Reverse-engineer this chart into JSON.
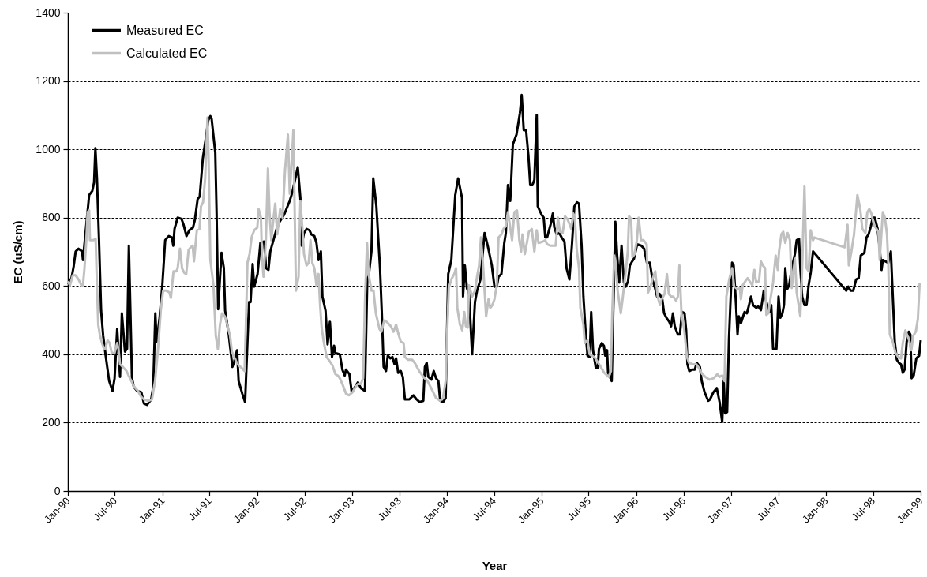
{
  "chart_data": {
    "type": "line",
    "xlabel": "Year",
    "ylabel": "EC (uS/cm)",
    "xlim": [
      "1990-01-01",
      "1999-01-01"
    ],
    "xticks": [
      {
        "value": "1990-01-01",
        "label": "Jan-90"
      },
      {
        "value": "1990-07-01",
        "label": "Jul-90"
      },
      {
        "value": "1991-01-01",
        "label": "Jan-91"
      },
      {
        "value": "1991-07-01",
        "label": "Jul-91"
      },
      {
        "value": "1992-01-01",
        "label": "Jan-92"
      },
      {
        "value": "1992-07-01",
        "label": "Jul-92"
      },
      {
        "value": "1993-01-01",
        "label": "Jan-93"
      },
      {
        "value": "1993-07-01",
        "label": "Jul-93"
      },
      {
        "value": "1994-01-01",
        "label": "Jan-94"
      },
      {
        "value": "1994-07-01",
        "label": "Jul-94"
      },
      {
        "value": "1995-01-01",
        "label": "Jan-95"
      },
      {
        "value": "1995-07-01",
        "label": "Jul-95"
      },
      {
        "value": "1996-01-01",
        "label": "Jan-96"
      },
      {
        "value": "1996-07-01",
        "label": "Jul-96"
      },
      {
        "value": "1997-01-01",
        "label": "Jan-97"
      },
      {
        "value": "1997-07-01",
        "label": "Jul-97"
      },
      {
        "value": "1998-01-01",
        "label": "Jan-98"
      },
      {
        "value": "1998-07-01",
        "label": "Jul-98"
      },
      {
        "value": "1999-01-01",
        "label": "Jan-99"
      }
    ],
    "ylim": [
      0,
      1400
    ],
    "yticks": [
      0,
      200,
      400,
      600,
      800,
      1000,
      1200,
      1400
    ],
    "grid": "y",
    "legend": "top left",
    "line_style": "solid",
    "series": [
      {
        "name": "Measured EC",
        "color": "#000000",
        "x": [
          "1990-01-01",
          "1990-01-15",
          "1990-01-23",
          "1990-01-31",
          "1990-02-11",
          "1990-02-25",
          "1990-02-28",
          "1990-03-24",
          "1990-04-05",
          "1990-04-12",
          "1990-04-17",
          "1990-04-23",
          "1990-05-01",
          "1990-05-09",
          "1990-05-17",
          "1990-05-28",
          "1990-06-09",
          "1990-06-22",
          "1990-06-30",
          "1990-07-10",
          "1990-07-21",
          "1990-07-28",
          "1990-08-09",
          "1990-08-17",
          "1990-08-24",
          "1990-09-05",
          "1990-09-12",
          "1990-09-25",
          "1990-10-11",
          "1990-10-21",
          "1990-11-02",
          "1990-11-18",
          "1990-11-26",
          "1990-12-04",
          "1990-12-09",
          "1990-12-20",
          "1990-12-31",
          "1991-01-11",
          "1991-01-25",
          "1991-02-06",
          "1991-02-11",
          "1991-02-16",
          "1991-02-28",
          "1991-03-15",
          "1991-03-23",
          "1991-04-03",
          "1991-04-14",
          "1991-04-28",
          "1991-05-05",
          "1991-05-16",
          "1991-05-24",
          "1991-06-05",
          "1991-06-17",
          "1991-06-26",
          "1991-07-04",
          "1991-07-09",
          "1991-07-23",
          "1991-07-28",
          "1991-08-03",
          "1991-08-16",
          "1991-08-25",
          "1991-08-30",
          "1991-09-13",
          "1991-09-27",
          "1991-10-04",
          "1991-10-15",
          "1991-10-21",
          "1991-11-04",
          "1991-11-15",
          "1991-11-30",
          "1991-12-06",
          "1991-12-14",
          "1991-12-20",
          "1992-01-02",
          "1992-01-13",
          "1992-01-27",
          "1992-02-04",
          "1992-02-13",
          "1992-02-20",
          "1992-03-06",
          "1992-03-17",
          "1992-03-27",
          "1992-04-13",
          "1992-05-05",
          "1992-05-15",
          "1992-06-05",
          "1992-06-15",
          "1992-06-20",
          "1992-06-29",
          "1992-07-09",
          "1992-07-20",
          "1992-07-27",
          "1992-08-08",
          "1992-08-16",
          "1992-08-24",
          "1992-09-02",
          "1992-09-08",
          "1992-09-20",
          "1992-09-28",
          "1992-10-07",
          "1992-10-15",
          "1992-10-23",
          "1992-10-28",
          "1992-11-14",
          "1992-11-24",
          "1992-12-03",
          "1992-12-08",
          "1992-12-21",
          "1992-12-30",
          "1993-01-12",
          "1993-01-23",
          "1993-02-03",
          "1993-02-19",
          "1993-02-28",
          "1993-03-05",
          "1993-03-16",
          "1993-03-23",
          "1993-04-04",
          "1993-04-18",
          "1993-04-25",
          "1993-05-02",
          "1993-05-11",
          "1993-05-18",
          "1993-05-28",
          "1993-06-05",
          "1993-06-13",
          "1993-06-19",
          "1993-06-27",
          "1993-07-07",
          "1993-07-15",
          "1993-07-23",
          "1993-08-09",
          "1993-08-25",
          "1993-09-06",
          "1993-09-18",
          "1993-10-02",
          "1993-10-08",
          "1993-10-15",
          "1993-10-21",
          "1993-11-02",
          "1993-11-11",
          "1993-11-20",
          "1993-11-29",
          "1993-12-06",
          "1993-12-17",
          "1993-12-27",
          "1994-01-06",
          "1994-01-18",
          "1994-02-02",
          "1994-02-13",
          "1994-02-28",
          "1994-03-04",
          "1994-03-11",
          "1994-03-19",
          "1994-03-27",
          "1994-04-08",
          "1994-04-19",
          "1994-04-27",
          "1994-05-10",
          "1994-05-26",
          "1994-06-07",
          "1994-06-14",
          "1994-06-23",
          "1994-07-03",
          "1994-07-12",
          "1994-07-19",
          "1994-07-30",
          "1994-08-10",
          "1994-08-16",
          "1994-08-24",
          "1994-09-02",
          "1994-09-12",
          "1994-09-26",
          "1994-10-09",
          "1994-10-16",
          "1994-10-24",
          "1994-11-02",
          "1994-11-11",
          "1994-11-18",
          "1994-11-26",
          "1994-12-04",
          "1994-12-13",
          "1994-12-17",
          "1995-01-01",
          "1995-01-09",
          "1995-01-15",
          "1995-01-22",
          "1995-01-28",
          "1995-02-06",
          "1995-02-13",
          "1995-02-19",
          "1995-02-28",
          "1995-03-10",
          "1995-03-19",
          "1995-03-30",
          "1995-04-07",
          "1995-04-18",
          "1995-04-28",
          "1995-05-07",
          "1995-05-17",
          "1995-05-25",
          "1995-06-04",
          "1995-06-11",
          "1995-06-20",
          "1995-06-27",
          "1995-07-05",
          "1995-07-11",
          "1995-07-18",
          "1995-07-29",
          "1995-08-05",
          "1995-08-10",
          "1995-08-21",
          "1995-08-29",
          "1995-09-03",
          "1995-09-10",
          "1995-09-14",
          "1995-09-28",
          "1995-10-03",
          "1995-10-12",
          "1995-10-19",
          "1995-10-27",
          "1995-11-05",
          "1995-11-14",
          "1995-11-21",
          "1995-11-30",
          "1995-12-07",
          "1995-12-16",
          "1995-12-23",
          "1996-01-04",
          "1996-01-20",
          "1996-01-31",
          "1996-02-11",
          "1996-02-22",
          "1996-03-03",
          "1996-03-13",
          "1996-03-21",
          "1996-03-30",
          "1996-04-10",
          "1996-04-17",
          "1996-04-26",
          "1996-05-07",
          "1996-05-14",
          "1996-05-21",
          "1996-05-28",
          "1996-06-09",
          "1996-06-17",
          "1996-06-25",
          "1996-07-05",
          "1996-07-11",
          "1996-07-16",
          "1996-07-23",
          "1996-08-02",
          "1996-08-13",
          "1996-08-21",
          "1996-09-02",
          "1996-09-09",
          "1996-09-20",
          "1996-10-04",
          "1996-10-11",
          "1996-10-24",
          "1996-11-06",
          "1996-11-17",
          "1996-11-27",
          "1996-12-03",
          "1996-12-08",
          "1996-12-16",
          "1996-12-23",
          "1997-01-04",
          "1997-01-10",
          "1997-01-18",
          "1997-01-25",
          "1997-01-30",
          "1997-02-07",
          "1997-02-21",
          "1997-03-02",
          "1997-03-09",
          "1997-03-18",
          "1997-03-26",
          "1997-04-07",
          "1997-04-15",
          "1997-04-25",
          "1997-05-06",
          "1997-05-11",
          "1997-05-22",
          "1997-05-30",
          "1997-06-04",
          "1997-06-11",
          "1997-06-24",
          "1997-07-02",
          "1997-07-09",
          "1997-07-17",
          "1997-07-23",
          "1997-07-28",
          "1997-08-04",
          "1997-08-12",
          "1997-08-22",
          "1997-09-03",
          "1997-09-10",
          "1997-09-19",
          "1997-09-24",
          "1997-10-01",
          "1997-10-10",
          "1997-10-18",
          "1997-10-26",
          "1997-11-03",
          "1997-11-12",
          "1998-03-20",
          "1998-03-28",
          "1998-04-06",
          "1998-04-16",
          "1998-04-27",
          "1998-05-07",
          "1998-05-15",
          "1998-05-29",
          "1998-06-06",
          "1998-06-14",
          "1998-06-23",
          "1998-06-30",
          "1998-07-08",
          "1998-07-19",
          "1998-07-27",
          "1998-08-03",
          "1998-08-08",
          "1998-08-18",
          "1998-08-29",
          "1998-09-08",
          "1998-09-15",
          "1998-09-23",
          "1998-10-01",
          "1998-10-09",
          "1998-10-17",
          "1998-10-24",
          "1998-10-31",
          "1998-11-08",
          "1998-11-16",
          "1998-11-22",
          "1998-11-27",
          "1998-12-05",
          "1998-12-15",
          "1998-12-26",
          "1999-01-01"
        ],
        "values": [
          606,
          623,
          656,
          701,
          709,
          701,
          676,
          866,
          878,
          903,
          1003,
          915,
          734,
          528,
          454,
          388,
          322,
          293,
          330,
          474,
          334,
          520,
          408,
          416,
          718,
          330,
          305,
          293,
          289,
          256,
          252,
          268,
          305,
          520,
          437,
          503,
          602,
          734,
          746,
          742,
          718,
          767,
          800,
          796,
          779,
          746,
          763,
          771,
          792,
          854,
          862,
          973,
          1035,
          1085,
          1097,
          1089,
          990,
          816,
          532,
          697,
          652,
          528,
          458,
          363,
          379,
          412,
          322,
          285,
          260,
          553,
          553,
          664,
          598,
          635,
          726,
          730,
          652,
          647,
          701,
          742,
          771,
          788,
          808,
          849,
          874,
          948,
          858,
          718,
          755,
          767,
          763,
          751,
          746,
          726,
          676,
          701,
          569,
          528,
          429,
          495,
          392,
          425,
          404,
          400,
          355,
          338,
          355,
          342,
          289,
          305,
          318,
          301,
          293,
          623,
          627,
          701,
          915,
          833,
          652,
          520,
          363,
          351,
          396,
          388,
          392,
          371,
          388,
          346,
          351,
          334,
          268,
          268,
          280,
          268,
          260,
          264,
          363,
          375,
          334,
          326,
          351,
          330,
          322,
          264,
          260,
          272,
          635,
          676,
          866,
          915,
          858,
          569,
          660,
          594,
          577,
          400,
          553,
          586,
          619,
          755,
          718,
          693,
          660,
          598,
          598,
          627,
          635,
          726,
          755,
          895,
          849,
          1014,
          1043,
          1105,
          1159,
          1056,
          1056,
          981,
          895,
          895,
          911,
          1101,
          833,
          808,
          800,
          742,
          742,
          759,
          784,
          812,
          771,
          751,
          755,
          742,
          730,
          652,
          619,
          722,
          833,
          845,
          841,
          718,
          569,
          458,
          396,
          392,
          524,
          412,
          359,
          359,
          416,
          433,
          425,
          396,
          412,
          346,
          322,
          487,
          788,
          689,
          610,
          718,
          610,
          598,
          614,
          660,
          672,
          680,
          722,
          718,
          709,
          668,
          668,
          619,
          594,
          569,
          577,
          561,
          520,
          507,
          495,
          482,
          520,
          482,
          458,
          458,
          524,
          520,
          470,
          371,
          351,
          355,
          355,
          375,
          363,
          322,
          289,
          264,
          268,
          289,
          301,
          260,
          202,
          322,
          227,
          231,
          445,
          668,
          660,
          561,
          458,
          511,
          491,
          524,
          520,
          540,
          569,
          544,
          536,
          540,
          529,
          586,
          569,
          536,
          524,
          544,
          416,
          416,
          569,
          507,
          520,
          544,
          652,
          590,
          602,
          652,
          693,
          734,
          738,
          652,
          569,
          544,
          544,
          602,
          639,
          701,
          586,
          598,
          586,
          586,
          619,
          623,
          689,
          697,
          742,
          751,
          775,
          800,
          800,
          767,
          709,
          647,
          676,
          672,
          668,
          701,
          577,
          437,
          384,
          375,
          371,
          346,
          355,
          437,
          466,
          458,
          330,
          338,
          388,
          396,
          441
        ]
      },
      {
        "name": "Calculated EC",
        "color": "#c0c0c0",
        "x": [
          "1990-01-01",
          "1990-01-09",
          "1990-01-20",
          "1990-01-31",
          "1990-02-11",
          "1990-02-22",
          "1990-02-28",
          "1990-03-06",
          "1990-03-13",
          "1990-03-18",
          "1990-03-24",
          "1990-03-27",
          "1990-04-10",
          "1990-04-18",
          "1990-04-23",
          "1990-04-28",
          "1990-05-04",
          "1990-05-11",
          "1990-05-20",
          "1990-05-25",
          "1990-06-03",
          "1990-06-11",
          "1990-06-19",
          "1990-06-30",
          "1990-07-10",
          "1990-07-15",
          "1990-07-21",
          "1990-08-01",
          "1990-08-15",
          "1990-08-28",
          "1990-09-14",
          "1990-09-28",
          "1990-10-10",
          "1990-10-21",
          "1990-11-07",
          "1990-11-21",
          "1990-12-03",
          "1990-12-14",
          "1990-12-25",
          "1991-01-03",
          "1991-01-16",
          "1991-01-27",
          "1991-02-02",
          "1991-02-12",
          "1991-02-23",
          "1991-02-28",
          "1991-03-09",
          "1991-03-17",
          "1991-03-25",
          "1991-04-02",
          "1991-04-11",
          "1991-04-19",
          "1991-04-27",
          "1991-05-02",
          "1991-05-13",
          "1991-05-23",
          "1991-05-29",
          "1991-06-06",
          "1991-06-14",
          "1991-06-23",
          "1991-06-27",
          "1991-07-04",
          "1991-07-16",
          "1991-07-25",
          "1991-08-02",
          "1991-08-10",
          "1991-08-18",
          "1991-08-29",
          "1991-09-09",
          "1991-09-18",
          "1991-09-25",
          "1991-10-06",
          "1991-10-17",
          "1991-11-03",
          "1991-11-13",
          "1991-11-18",
          "1991-11-24",
          "1991-12-02",
          "1991-12-10",
          "1991-12-20",
          "1992-01-01",
          "1992-01-06",
          "1992-01-15",
          "1992-01-19",
          "1992-01-25",
          "1992-02-03",
          "1992-02-11",
          "1992-02-17",
          "1992-02-24",
          "1992-02-28",
          "1992-03-10",
          "1992-03-18",
          "1992-03-29",
          "1992-04-07",
          "1992-04-17",
          "1992-04-28",
          "1992-05-05",
          "1992-05-14",
          "1992-05-19",
          "1992-05-29",
          "1992-06-08",
          "1992-06-15",
          "1992-06-23",
          "1992-06-29",
          "1992-07-09",
          "1992-07-17",
          "1992-07-24",
          "1992-07-31",
          "1992-08-08",
          "1992-08-16",
          "1992-08-24",
          "1992-08-30",
          "1992-09-05",
          "1992-09-13",
          "1992-09-24",
          "1992-10-07",
          "1992-10-17",
          "1992-10-28",
          "1992-11-06",
          "1992-11-14",
          "1992-11-24",
          "1992-12-08",
          "1992-12-19",
          "1993-01-02",
          "1993-01-14",
          "1993-01-23",
          "1993-02-03",
          "1993-02-12",
          "1993-02-19",
          "1993-02-27",
          "1993-03-05",
          "1993-03-16",
          "1993-03-24",
          "1993-04-02",
          "1993-04-16",
          "1993-04-23",
          "1993-05-04",
          "1993-05-14",
          "1993-05-30",
          "1993-06-09",
          "1993-06-19",
          "1993-06-27",
          "1993-07-07",
          "1993-07-18",
          "1993-07-23",
          "1993-08-04",
          "1993-08-20",
          "1993-08-30",
          "1993-09-16",
          "1993-10-02",
          "1993-10-18",
          "1993-11-04",
          "1993-11-20",
          "1993-12-06",
          "1993-12-17",
          "1993-12-27",
          "1994-01-03",
          "1994-01-08",
          "1994-01-18",
          "1994-01-29",
          "1994-02-05",
          "1994-02-10",
          "1994-02-20",
          "1994-03-01",
          "1994-03-09",
          "1994-03-15",
          "1994-03-22",
          "1994-03-27",
          "1994-04-08",
          "1994-04-19",
          "1994-04-27",
          "1994-05-05",
          "1994-05-12",
          "1994-05-21",
          "1994-06-01",
          "1994-06-10",
          "1994-06-17",
          "1994-06-25",
          "1994-07-03",
          "1994-07-12",
          "1994-07-19",
          "1994-07-30",
          "1994-08-07",
          "1994-08-16",
          "1994-08-24",
          "1994-09-02",
          "1994-09-09",
          "1994-09-18",
          "1994-09-28",
          "1994-10-07",
          "1994-10-14",
          "1994-10-19",
          "1994-10-28",
          "1994-11-13",
          "1994-11-24",
          "1994-12-04",
          "1994-12-13",
          "1994-12-20",
          "1995-01-06",
          "1995-01-15",
          "1995-01-22",
          "1995-02-03",
          "1995-02-13",
          "1995-02-24",
          "1995-03-05",
          "1995-03-12",
          "1995-03-23",
          "1995-04-01",
          "1995-04-10",
          "1995-04-17",
          "1995-04-25",
          "1995-05-03",
          "1995-05-09",
          "1995-05-16",
          "1995-05-25",
          "1995-05-30",
          "1995-06-11",
          "1995-06-16",
          "1995-06-27",
          "1995-07-05",
          "1995-07-12",
          "1995-07-23",
          "1995-08-04",
          "1995-08-17",
          "1995-08-30",
          "1995-09-16",
          "1995-09-25",
          "1995-09-30",
          "1995-10-08",
          "1995-10-15",
          "1995-10-21",
          "1995-11-02",
          "1995-11-09",
          "1995-11-20",
          "1995-11-29",
          "1995-12-04",
          "1995-12-12",
          "1995-12-17",
          "1995-12-25",
          "1996-01-03",
          "1996-01-10",
          "1996-01-19",
          "1996-01-29",
          "1996-02-10",
          "1996-02-15",
          "1996-02-23",
          "1996-03-03",
          "1996-03-14",
          "1996-03-23",
          "1996-04-01",
          "1996-04-08",
          "1996-04-19",
          "1996-04-28",
          "1996-05-05",
          "1996-05-14",
          "1996-05-22",
          "1996-06-02",
          "1996-06-09",
          "1996-06-15",
          "1996-06-23",
          "1996-07-04",
          "1996-07-14",
          "1996-07-22",
          "1996-08-06",
          "1996-08-19",
          "1996-08-30",
          "1996-09-11",
          "1996-09-23",
          "1996-10-09",
          "1996-10-25",
          "1996-11-08",
          "1996-11-17",
          "1996-11-27",
          "1996-12-06",
          "1996-12-13",
          "1996-12-24",
          "1997-01-04",
          "1997-01-12",
          "1997-01-26",
          "1997-02-03",
          "1997-02-07",
          "1997-02-14",
          "1997-02-24",
          "1997-03-05",
          "1997-03-16",
          "1997-03-23",
          "1997-03-31",
          "1997-04-07",
          "1997-04-18",
          "1997-04-25",
          "1997-05-03",
          "1997-05-11",
          "1997-05-16",
          "1997-05-24",
          "1997-05-30",
          "1997-06-11",
          "1997-06-21",
          "1997-06-29",
          "1997-07-04",
          "1997-07-13",
          "1997-07-20",
          "1997-07-28",
          "1997-08-06",
          "1997-08-15",
          "1997-08-22",
          "1997-09-03",
          "1997-09-10",
          "1997-09-24",
          "1997-10-01",
          "1997-10-10",
          "1997-10-18",
          "1997-10-26",
          "1997-11-03",
          "1997-11-12",
          "1997-11-17",
          "1998-03-14",
          "1998-03-25",
          "1998-03-30",
          "1998-04-09",
          "1998-04-19",
          "1998-05-02",
          "1998-05-13",
          "1998-05-21",
          "1998-06-02",
          "1998-06-09",
          "1998-06-17",
          "1998-06-25",
          "1998-07-04",
          "1998-07-11",
          "1998-07-22",
          "1998-07-27",
          "1998-08-08",
          "1998-08-16",
          "1998-08-24",
          "1998-08-29",
          "1998-09-04",
          "1998-09-15",
          "1998-09-26",
          "1998-10-06",
          "1998-10-17",
          "1998-10-24",
          "1998-11-03",
          "1998-11-11",
          "1998-11-19",
          "1998-11-26",
          "1998-12-03",
          "1998-12-13",
          "1998-12-21",
          "1998-12-28"
        ],
        "values": [
          614,
          602,
          631,
          631,
          619,
          602,
          602,
          652,
          734,
          816,
          821,
          734,
          734,
          738,
          602,
          487,
          458,
          437,
          416,
          416,
          441,
          433,
          404,
          404,
          433,
          416,
          371,
          363,
          351,
          330,
          305,
          293,
          276,
          268,
          264,
          268,
          322,
          412,
          528,
          586,
          586,
          581,
          565,
          643,
          643,
          652,
          709,
          652,
          639,
          635,
          705,
          713,
          718,
          672,
          763,
          767,
          833,
          845,
          915,
          1093,
          981,
          676,
          602,
          454,
          416,
          487,
          520,
          511,
          482,
          454,
          408,
          388,
          371,
          359,
          351,
          487,
          668,
          693,
          742,
          763,
          771,
          825,
          800,
          685,
          627,
          734,
          944,
          816,
          734,
          767,
          841,
          751,
          825,
          800,
          940,
          1043,
          870,
          981,
          1056,
          586,
          627,
          849,
          767,
          693,
          660,
          668,
          734,
          668,
          652,
          602,
          635,
          544,
          478,
          437,
          392,
          379,
          367,
          342,
          338,
          330,
          313,
          285,
          280,
          289,
          305,
          313,
          313,
          330,
          553,
          726,
          635,
          586,
          586,
          520,
          474,
          466,
          499,
          495,
          482,
          466,
          487,
          462,
          437,
          433,
          392,
          384,
          384,
          375,
          351,
          334,
          322,
          297,
          272,
          264,
          272,
          322,
          487,
          594,
          619,
          635,
          652,
          536,
          487,
          470,
          524,
          482,
          478,
          602,
          569,
          586,
          627,
          660,
          742,
          652,
          511,
          561,
          536,
          544,
          561,
          602,
          742,
          751,
          767,
          775,
          816,
          771,
          734,
          816,
          821,
          734,
          701,
          751,
          693,
          759,
          767,
          701,
          763,
          726,
          730,
          734,
          722,
          718,
          718,
          718,
          800,
          759,
          755,
          804,
          796,
          784,
          767,
          812,
          800,
          709,
          652,
          536,
          487,
          433,
          441,
          400,
          396,
          392,
          379,
          363,
          346,
          334,
          351,
          520,
          689,
          652,
          586,
          520,
          561,
          635,
          701,
          804,
          796,
          685,
          693,
          734,
          800,
          734,
          734,
          722,
          581,
          594,
          619,
          643,
          569,
          544,
          561,
          577,
          635,
          577,
          569,
          569,
          557,
          569,
          660,
          520,
          470,
          392,
          375,
          371,
          371,
          359,
          342,
          334,
          326,
          330,
          342,
          334,
          338,
          322,
          569,
          619,
          652,
          598,
          590,
          594,
          561,
          602,
          614,
          623,
          610,
          602,
          647,
          610,
          614,
          672,
          660,
          652,
          515,
          520,
          553,
          610,
          689,
          647,
          701,
          751,
          759,
          726,
          755,
          734,
          594,
          680,
          581,
          511,
          652,
          891,
          652,
          643,
          763,
          734,
          742,
          713,
          779,
          660,
          701,
          751,
          866,
          825,
          767,
          755,
          816,
          825,
          812,
          779,
          771,
          759,
          676,
          816,
          800,
          751,
          668,
          458,
          437,
          404,
          392,
          388,
          433,
          470,
          454,
          437,
          412,
          454,
          466,
          503,
          610
        ]
      }
    ]
  }
}
